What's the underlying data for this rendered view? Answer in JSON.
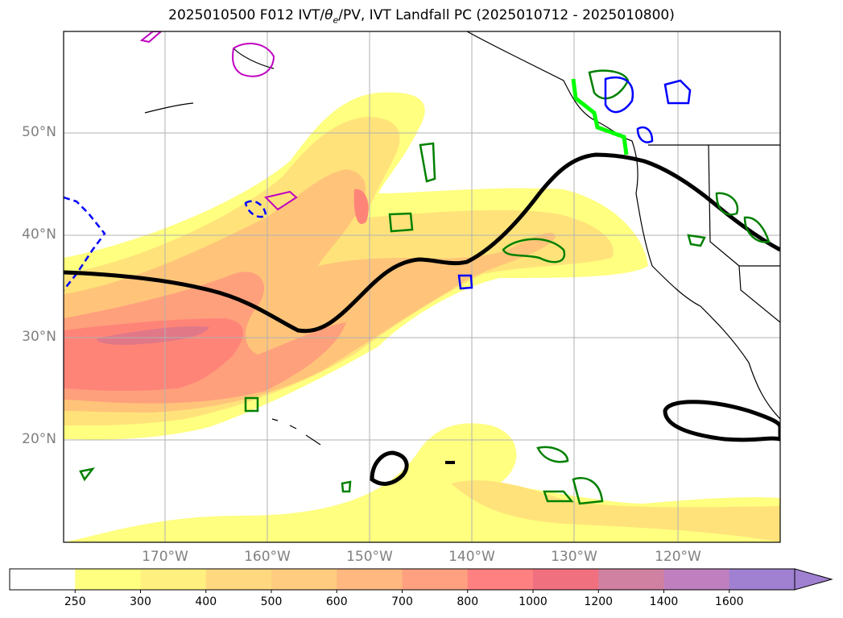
{
  "title": "2025010500 F012 IVT/θe/PV, IVT Landfall PC (2025010712 - 2025010800)",
  "title_parts": {
    "prefix": "2025010500 F012 IVT/",
    "theta": "θ",
    "sub": "e",
    "suffix": "/PV, IVT Landfall PC (2025010712 - 2025010800)"
  },
  "lat_labels": [
    "50°N",
    "40°N",
    "30°N",
    "20°N"
  ],
  "lon_labels": [
    "170°W",
    "160°W",
    "150°W",
    "140°W",
    "130°W",
    "120°W"
  ],
  "colorbar": {
    "levels": [
      "250",
      "300",
      "400",
      "500",
      "600",
      "700",
      "800",
      "1000",
      "1200",
      "1400",
      "1600"
    ],
    "colors": [
      "#ffffff",
      "#ffff80",
      "#fff080",
      "#ffd880",
      "#ffcc80",
      "#ffb880",
      "#ffa080",
      "#ff8080",
      "#f07080",
      "#d080a0",
      "#c080c0",
      "#a080d0"
    ]
  },
  "legend_colors": {
    "theta_e_contour": "#000000",
    "pv_positive": "#008000",
    "pv_negative": "#0000ff",
    "pv_magenta": "#c000c0",
    "landfall": "#00ff00"
  }
}
